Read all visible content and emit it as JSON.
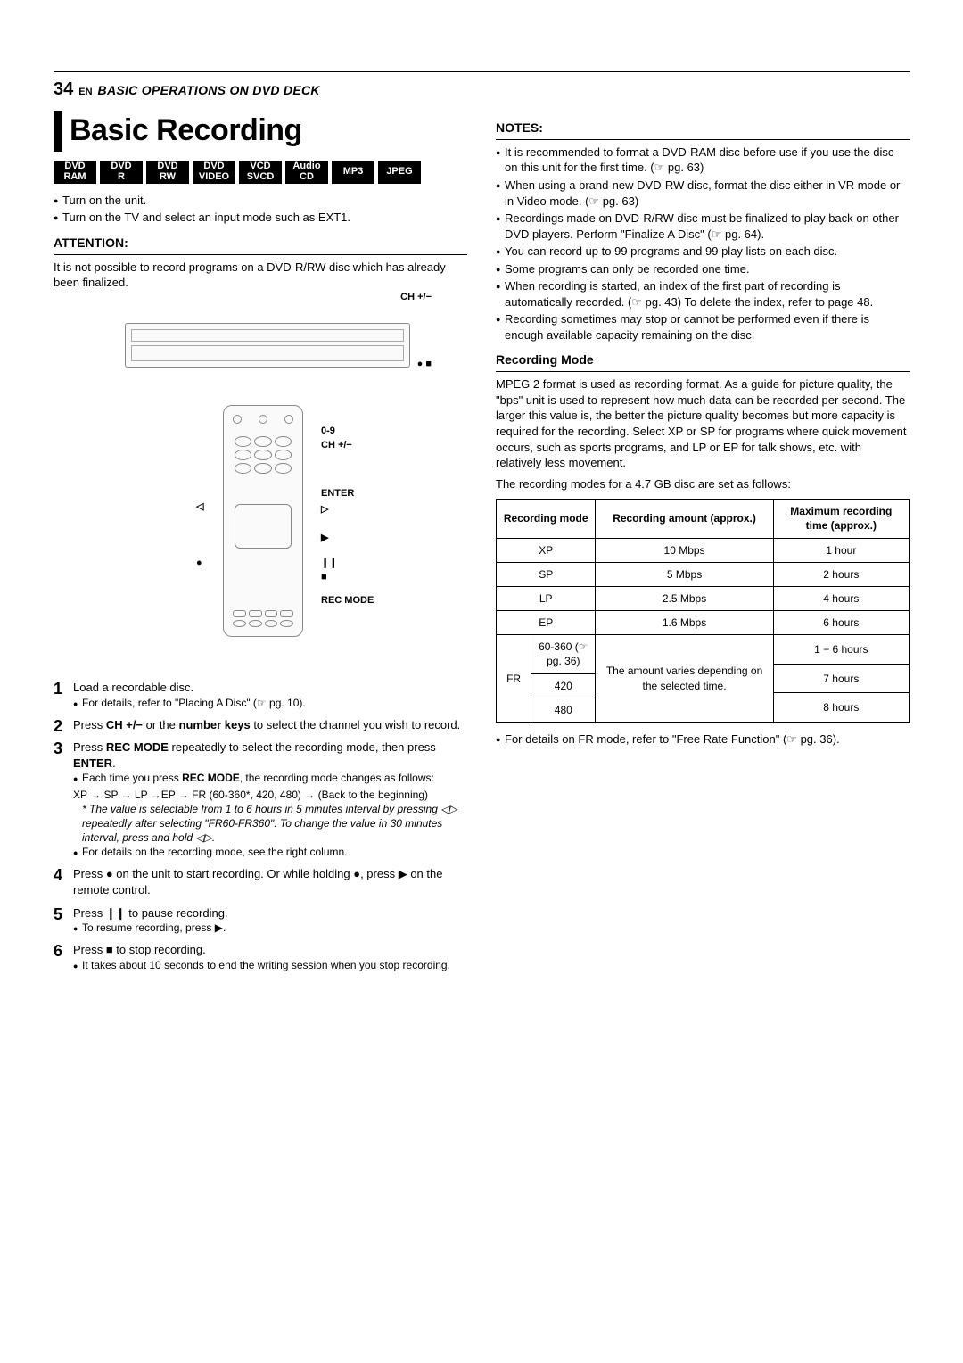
{
  "header": {
    "page_number": "34",
    "lang": "EN",
    "section_title": "BASIC OPERATIONS ON DVD DECK"
  },
  "title": "Basic Recording",
  "format_tags": [
    {
      "l1": "DVD",
      "l2": "RAM"
    },
    {
      "l1": "DVD",
      "l2": "R"
    },
    {
      "l1": "DVD",
      "l2": "RW"
    },
    {
      "l1": "DVD",
      "l2": "VIDEO"
    },
    {
      "l1": "VCD",
      "l2": "SVCD"
    },
    {
      "l1": "Audio",
      "l2": "CD"
    },
    {
      "l1": "MP3",
      "l2": ""
    },
    {
      "l1": "JPEG",
      "l2": ""
    }
  ],
  "intro_bullets": [
    "Turn on the unit.",
    "Turn on the TV and select an input mode such as EXT1."
  ],
  "attention": {
    "heading": "ATTENTION:",
    "text": "It is not possible to record programs on a DVD-R/RW disc which has already been finalized."
  },
  "diagram": {
    "annot_ch_top": "CH +/−",
    "annot_rec_stop": "● ■",
    "annot_09": "0-9",
    "annot_ch": "CH +/−",
    "annot_enter": "ENTER",
    "annot_left": "◁",
    "annot_right": "▷",
    "annot_play": "▶",
    "annot_rec": "●",
    "annot_pause": "❙❙",
    "annot_stop": "■",
    "annot_recmode": "REC MODE"
  },
  "steps": [
    {
      "num": "1",
      "text": "Load a recordable disc.",
      "subs": [
        "For details, refer to \"Placing A Disc\" (☞ pg. 10)."
      ]
    },
    {
      "num": "2",
      "text_html": "Press <b>CH +/−</b> or the <b>number keys</b> to select the channel you wish to record."
    },
    {
      "num": "3",
      "text_html": "Press <b>REC MODE</b> repeatedly to select the recording mode, then press <b>ENTER</b>.",
      "subs": [
        "Each time you press <b>REC MODE</b>, the recording mode changes as follows:"
      ],
      "mode_chain": "XP → SP → LP →EP → FR (60-360*, 420, 480) → (Back to the beginning)",
      "footnote": "* The value is selectable from 1 to 6 hours in 5 minutes interval by pressing ◁▷ repeatedly after selecting \"FR60-FR360\". To change the value in 30 minutes interval, press and hold ◁▷.",
      "subs2": [
        "For details on the recording mode, see the right column."
      ]
    },
    {
      "num": "4",
      "text_html": "Press ● on the unit to start recording. Or while holding ●, press ▶ on the remote control."
    },
    {
      "num": "5",
      "text_html": "Press ❙❙ to pause recording.",
      "subs": [
        "To resume recording, press ▶."
      ]
    },
    {
      "num": "6",
      "text_html": "Press ■ to stop recording.",
      "subs": [
        "It takes about 10 seconds to end the writing session when you stop recording."
      ]
    }
  ],
  "notes": {
    "heading": "NOTES:",
    "items": [
      "It is recommended to format a DVD-RAM disc before use if you use the disc on this unit for the first time. (☞ pg. 63)",
      "When using a brand-new DVD-RW disc, format the disc either in VR mode or in Video mode. (☞ pg. 63)",
      "Recordings made on DVD-R/RW disc must be finalized to play back on other DVD players. Perform \"Finalize A Disc\" (☞ pg. 64).",
      "You can record up to 99 programs and 99 play lists on each disc.",
      "Some programs can only be recorded one time.",
      "When recording is started, an index of the first part of recording is automatically recorded. (☞ pg. 43) To delete the index, refer to page 48.",
      "Recording sometimes may stop or cannot be performed even if there is enough available capacity remaining on the disc."
    ]
  },
  "recording_mode": {
    "heading": "Recording Mode",
    "para1": "MPEG 2 format is used as recording format. As a guide for picture quality, the \"bps\" unit is used to represent how much data can be recorded per second. The larger this value is, the better the picture quality becomes but more capacity is required for the recording. Select XP or SP for programs where quick movement occurs, such as sports programs, and LP or EP for talk shows, etc. with relatively less movement.",
    "para2": "The recording modes for a 4.7 GB disc are set as follows:",
    "table": {
      "headers": [
        "Recording mode",
        "Recording amount (approx.)",
        "Maximum recording time (approx.)"
      ],
      "rows_simple": [
        {
          "mode": "XP",
          "amount": "10 Mbps",
          "time": "1 hour"
        },
        {
          "mode": "SP",
          "amount": "5 Mbps",
          "time": "2 hours"
        },
        {
          "mode": "LP",
          "amount": "2.5 Mbps",
          "time": "4 hours"
        },
        {
          "mode": "EP",
          "amount": "1.6 Mbps",
          "time": "6 hours"
        }
      ],
      "fr": {
        "label": "FR",
        "sub1": "60-360 (☞ pg. 36)",
        "sub2": "420",
        "sub3": "480",
        "amount": "The amount varies depending on the selected time.",
        "time1": "1 − 6 hours",
        "time2": "7 hours",
        "time3": "8 hours"
      }
    },
    "footnote": "For details on FR mode, refer to \"Free Rate Function\" (☞ pg. 36)."
  }
}
